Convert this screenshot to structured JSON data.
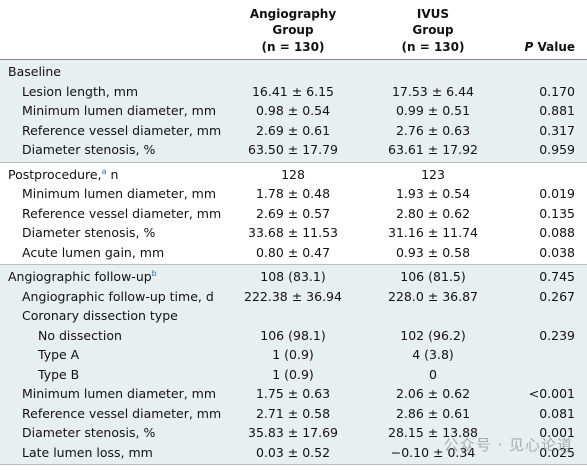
{
  "table": {
    "header": [
      {
        "lines": []
      },
      {
        "lines": [
          "Angiography",
          "Group",
          "(n = 130)"
        ]
      },
      {
        "lines": [
          "IVUS",
          "Group",
          "(n = 130)"
        ]
      },
      {
        "lines": [
          "P Value"
        ]
      }
    ],
    "sections": [
      {
        "shaded": true,
        "rows": [
          {
            "level": 0,
            "label": "Baseline"
          },
          {
            "level": 1,
            "label": "Lesion length, mm",
            "angio": "16.41 ± 6.15",
            "ivus": "17.53 ± 6.44",
            "p": "0.170"
          },
          {
            "level": 1,
            "label": "Minimum lumen diameter, mm",
            "angio": "0.98 ± 0.54",
            "ivus": "0.99 ± 0.51",
            "p": "0.881"
          },
          {
            "level": 1,
            "label": "Reference vessel diameter, mm",
            "angio": "2.69 ± 0.61",
            "ivus": "2.76 ± 0.63",
            "p": "0.317"
          },
          {
            "level": 1,
            "label": "Diameter stenosis, %",
            "angio": "63.50 ± 17.79",
            "ivus": "63.61 ± 17.92",
            "p": "0.959"
          }
        ]
      },
      {
        "shaded": false,
        "rows": [
          {
            "level": 0,
            "label": "Postprocedure,",
            "sup": "a",
            "suffix": " n",
            "angio": "128",
            "ivus": "123"
          },
          {
            "level": 1,
            "label": "Minimum lumen diameter, mm",
            "angio": "1.78 ± 0.48",
            "ivus": "1.93 ± 0.54",
            "p": "0.019"
          },
          {
            "level": 1,
            "label": "Reference vessel diameter, mm",
            "angio": "2.69 ± 0.57",
            "ivus": "2.80 ± 0.62",
            "p": "0.135"
          },
          {
            "level": 1,
            "label": "Diameter stenosis, %",
            "angio": "33.68 ± 11.53",
            "ivus": "31.16 ± 11.74",
            "p": "0.088"
          },
          {
            "level": 1,
            "label": "Acute lumen gain, mm",
            "angio": "0.80 ± 0.47",
            "ivus": "0.93 ± 0.58",
            "p": "0.038"
          }
        ]
      },
      {
        "shaded": true,
        "rows": [
          {
            "level": 0,
            "label": "Angiographic follow-up",
            "sup": "b",
            "angio": "108 (83.1)",
            "ivus": "106 (81.5)",
            "p": "0.745"
          },
          {
            "level": 1,
            "label": "Angiographic follow-up time, d",
            "angio": "222.38 ± 36.94",
            "ivus": "228.0 ± 36.87",
            "p": "0.267"
          },
          {
            "level": 1,
            "label": "Coronary dissection type"
          },
          {
            "level": 2,
            "label": "No dissection",
            "angio": "106 (98.1)",
            "ivus": "102 (96.2)",
            "p": "0.239"
          },
          {
            "level": 2,
            "label": "Type A",
            "angio": "1 (0.9)",
            "ivus": "4 (3.8)"
          },
          {
            "level": 2,
            "label": "Type B",
            "angio": "1 (0.9)",
            "ivus": "0"
          },
          {
            "level": 1,
            "label": "Minimum lumen diameter, mm",
            "angio": "1.75 ± 0.63",
            "ivus": "2.06 ± 0.62",
            "p": "<0.001"
          },
          {
            "level": 1,
            "label": "Reference vessel diameter, mm",
            "angio": "2.71 ± 0.58",
            "ivus": "2.86 ± 0.61",
            "p": "0.081"
          },
          {
            "level": 1,
            "label": "Diameter stenosis, %",
            "angio": "35.83 ± 17.69",
            "ivus": "28.15 ± 13.88",
            "p": "0.001"
          },
          {
            "level": 1,
            "label": "Late lumen loss, mm",
            "angio": "0.03 ± 0.52",
            "ivus": "−0.10 ± 0.34",
            "p": "0.025"
          }
        ]
      }
    ]
  },
  "watermark": "公众号 · 见心论道"
}
